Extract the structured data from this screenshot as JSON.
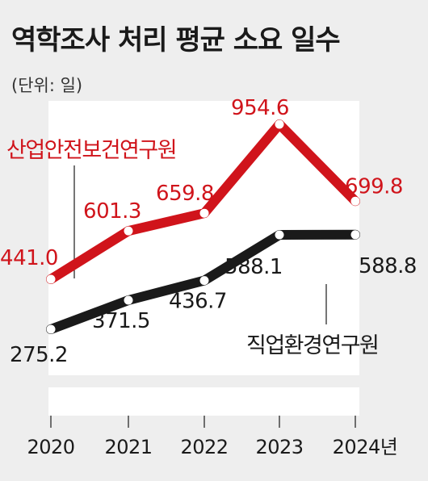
{
  "title": "역학조사 처리 평균 소요 일수",
  "unit": "(단위: 일)",
  "colors": {
    "series_red": "#d0141b",
    "series_black": "#1a1a1a",
    "background": "#eeeeee",
    "panel": "#ffffff"
  },
  "chart_data": {
    "type": "line",
    "categories": [
      "2020",
      "2021",
      "2022",
      "2023",
      "2024년"
    ],
    "series": [
      {
        "name": "산업안전보건연구원",
        "color": "#d0141b",
        "values": [
          441.0,
          601.3,
          659.8,
          954.6,
          699.8
        ],
        "labels": [
          "441.0",
          "601.3",
          "659.8",
          "954.6",
          "699.8"
        ]
      },
      {
        "name": "직업환경연구원",
        "color": "#1a1a1a",
        "values": [
          275.2,
          371.5,
          436.7,
          588.1,
          588.8
        ],
        "labels": [
          "275.2",
          "371.5",
          "436.7",
          "588.1",
          "588.8"
        ]
      }
    ],
    "xlabel": "",
    "ylabel": "",
    "grid": false,
    "legend": "inline labels"
  }
}
